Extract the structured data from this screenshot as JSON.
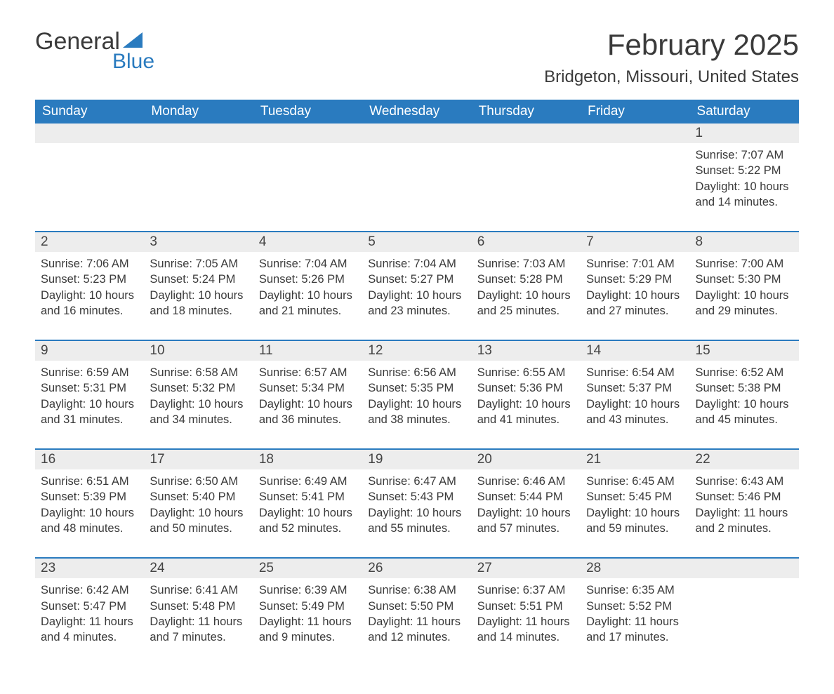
{
  "brand": {
    "word1": "General",
    "word2": "Blue",
    "accent_color": "#2a7bbf"
  },
  "title": "February 2025",
  "location": "Bridgeton, Missouri, United States",
  "colors": {
    "header_bg": "#2a7bbf",
    "header_text": "#ffffff",
    "daynum_bg": "#ededed",
    "row_divider": "#2a7bbf",
    "text": "#3a3a3a",
    "page_bg": "#ffffff"
  },
  "typography": {
    "title_fontsize": 42,
    "location_fontsize": 24,
    "dow_fontsize": 19,
    "daynum_fontsize": 19,
    "body_fontsize": 16.5
  },
  "day_names": [
    "Sunday",
    "Monday",
    "Tuesday",
    "Wednesday",
    "Thursday",
    "Friday",
    "Saturday"
  ],
  "sunrise_label": "Sunrise: ",
  "sunset_label": "Sunset: ",
  "daylight_label": "Daylight: ",
  "weeks": [
    [
      null,
      null,
      null,
      null,
      null,
      null,
      {
        "n": "1",
        "sunrise": "7:07 AM",
        "sunset": "5:22 PM",
        "daylight": "10 hours and 14 minutes."
      }
    ],
    [
      {
        "n": "2",
        "sunrise": "7:06 AM",
        "sunset": "5:23 PM",
        "daylight": "10 hours and 16 minutes."
      },
      {
        "n": "3",
        "sunrise": "7:05 AM",
        "sunset": "5:24 PM",
        "daylight": "10 hours and 18 minutes."
      },
      {
        "n": "4",
        "sunrise": "7:04 AM",
        "sunset": "5:26 PM",
        "daylight": "10 hours and 21 minutes."
      },
      {
        "n": "5",
        "sunrise": "7:04 AM",
        "sunset": "5:27 PM",
        "daylight": "10 hours and 23 minutes."
      },
      {
        "n": "6",
        "sunrise": "7:03 AM",
        "sunset": "5:28 PM",
        "daylight": "10 hours and 25 minutes."
      },
      {
        "n": "7",
        "sunrise": "7:01 AM",
        "sunset": "5:29 PM",
        "daylight": "10 hours and 27 minutes."
      },
      {
        "n": "8",
        "sunrise": "7:00 AM",
        "sunset": "5:30 PM",
        "daylight": "10 hours and 29 minutes."
      }
    ],
    [
      {
        "n": "9",
        "sunrise": "6:59 AM",
        "sunset": "5:31 PM",
        "daylight": "10 hours and 31 minutes."
      },
      {
        "n": "10",
        "sunrise": "6:58 AM",
        "sunset": "5:32 PM",
        "daylight": "10 hours and 34 minutes."
      },
      {
        "n": "11",
        "sunrise": "6:57 AM",
        "sunset": "5:34 PM",
        "daylight": "10 hours and 36 minutes."
      },
      {
        "n": "12",
        "sunrise": "6:56 AM",
        "sunset": "5:35 PM",
        "daylight": "10 hours and 38 minutes."
      },
      {
        "n": "13",
        "sunrise": "6:55 AM",
        "sunset": "5:36 PM",
        "daylight": "10 hours and 41 minutes."
      },
      {
        "n": "14",
        "sunrise": "6:54 AM",
        "sunset": "5:37 PM",
        "daylight": "10 hours and 43 minutes."
      },
      {
        "n": "15",
        "sunrise": "6:52 AM",
        "sunset": "5:38 PM",
        "daylight": "10 hours and 45 minutes."
      }
    ],
    [
      {
        "n": "16",
        "sunrise": "6:51 AM",
        "sunset": "5:39 PM",
        "daylight": "10 hours and 48 minutes."
      },
      {
        "n": "17",
        "sunrise": "6:50 AM",
        "sunset": "5:40 PM",
        "daylight": "10 hours and 50 minutes."
      },
      {
        "n": "18",
        "sunrise": "6:49 AM",
        "sunset": "5:41 PM",
        "daylight": "10 hours and 52 minutes."
      },
      {
        "n": "19",
        "sunrise": "6:47 AM",
        "sunset": "5:43 PM",
        "daylight": "10 hours and 55 minutes."
      },
      {
        "n": "20",
        "sunrise": "6:46 AM",
        "sunset": "5:44 PM",
        "daylight": "10 hours and 57 minutes."
      },
      {
        "n": "21",
        "sunrise": "6:45 AM",
        "sunset": "5:45 PM",
        "daylight": "10 hours and 59 minutes."
      },
      {
        "n": "22",
        "sunrise": "6:43 AM",
        "sunset": "5:46 PM",
        "daylight": "11 hours and 2 minutes."
      }
    ],
    [
      {
        "n": "23",
        "sunrise": "6:42 AM",
        "sunset": "5:47 PM",
        "daylight": "11 hours and 4 minutes."
      },
      {
        "n": "24",
        "sunrise": "6:41 AM",
        "sunset": "5:48 PM",
        "daylight": "11 hours and 7 minutes."
      },
      {
        "n": "25",
        "sunrise": "6:39 AM",
        "sunset": "5:49 PM",
        "daylight": "11 hours and 9 minutes."
      },
      {
        "n": "26",
        "sunrise": "6:38 AM",
        "sunset": "5:50 PM",
        "daylight": "11 hours and 12 minutes."
      },
      {
        "n": "27",
        "sunrise": "6:37 AM",
        "sunset": "5:51 PM",
        "daylight": "11 hours and 14 minutes."
      },
      {
        "n": "28",
        "sunrise": "6:35 AM",
        "sunset": "5:52 PM",
        "daylight": "11 hours and 17 minutes."
      },
      null
    ]
  ]
}
